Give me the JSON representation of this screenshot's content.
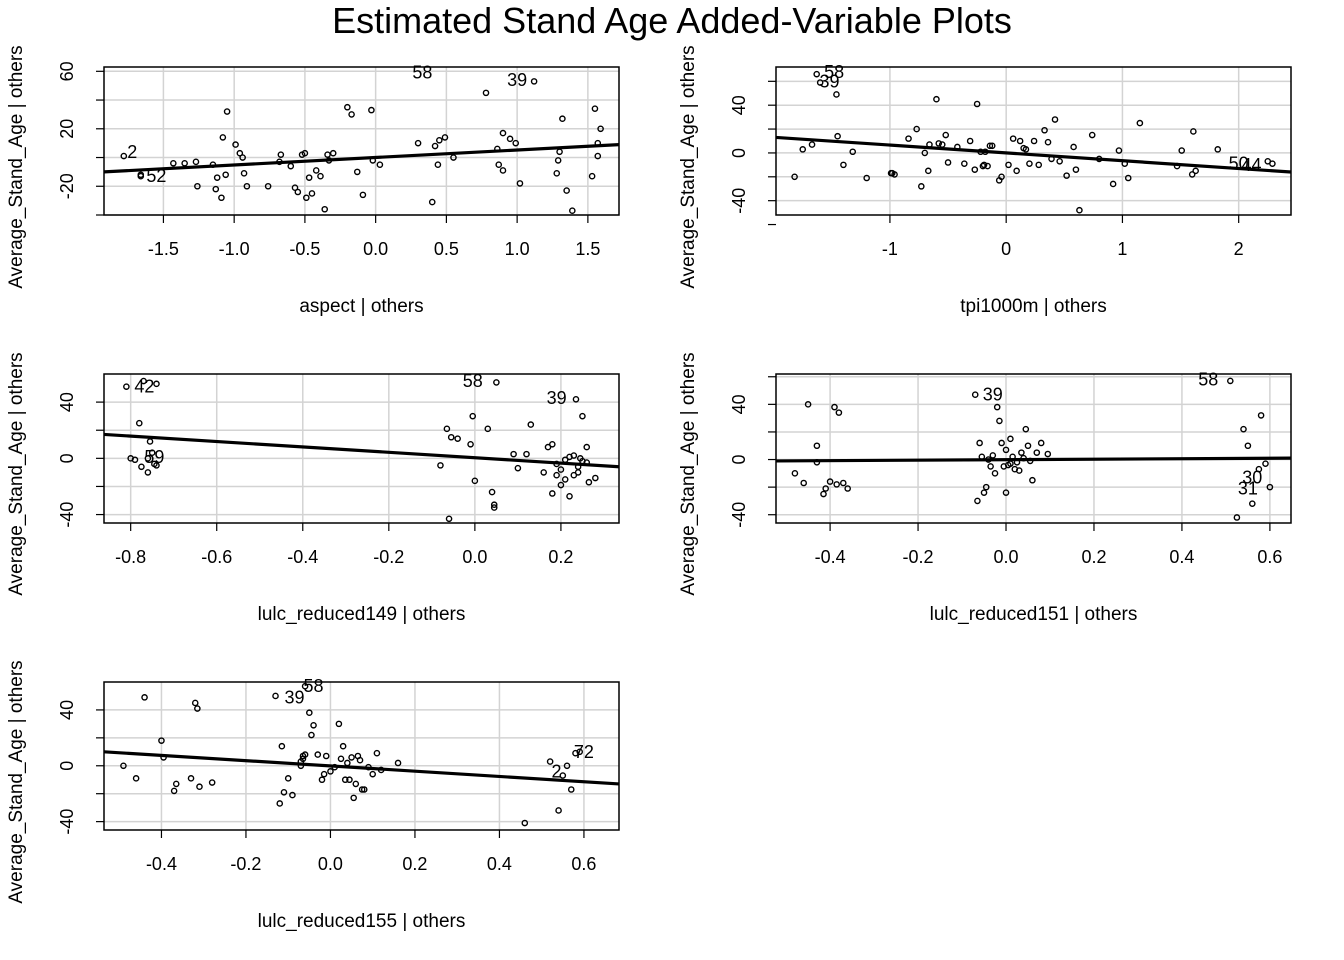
{
  "figure": {
    "title": "Estimated Stand Age Added-Variable Plots"
  },
  "chart_data": [
    {
      "type": "scatter",
      "xlabel": "aspect | others",
      "ylabel": "Average_Stand_Age  | others",
      "xlim": [
        -1.92,
        1.72
      ],
      "ylim": [
        -40,
        63
      ],
      "xticks": [
        -1.5,
        -1.0,
        -0.5,
        0.0,
        0.5,
        1.0,
        1.5
      ],
      "xtick_labels": [
        "-1.5",
        "-1.0",
        "-0.5",
        "0.0",
        "0.5",
        "1.0",
        "1.5"
      ],
      "yticks": [
        -40,
        -20,
        0,
        20,
        40,
        60
      ],
      "ytick_labels": [
        "",
        "-20",
        "",
        "20",
        "",
        "60"
      ],
      "grid": true,
      "fit_line": {
        "x0": -1.92,
        "y0": -10,
        "x1": 1.72,
        "y1": 9
      },
      "x": [
        -1.78,
        -1.66,
        -1.66,
        -1.43,
        -1.35,
        -1.27,
        -1.26,
        -1.15,
        -1.13,
        -1.12,
        -1.09,
        -1.08,
        -1.05,
        -1.06,
        -0.99,
        -0.96,
        -0.94,
        -0.93,
        -0.91,
        -0.76,
        -0.68,
        -0.67,
        -0.6,
        -0.57,
        -0.55,
        -0.52,
        -0.5,
        -0.49,
        -0.47,
        -0.45,
        -0.42,
        -0.39,
        -0.36,
        -0.34,
        -0.33,
        -0.3,
        -0.2,
        -0.17,
        -0.13,
        -0.09,
        -0.03,
        -0.02,
        0.03,
        0.3,
        0.4,
        0.42,
        0.44,
        0.45,
        0.49,
        0.55,
        0.78,
        0.86,
        0.87,
        0.9,
        0.9,
        0.95,
        0.99,
        1.02,
        1.12,
        1.28,
        1.29,
        1.3,
        1.32,
        1.35,
        1.39,
        1.53,
        1.55,
        1.57,
        1.57,
        1.59
      ],
      "y": [
        1,
        -12,
        -13,
        -4,
        -4,
        -3,
        -20,
        -5,
        -22,
        -14,
        -28,
        14,
        32,
        -12,
        9,
        3,
        0,
        -11,
        -20,
        -20,
        -3,
        2,
        -6,
        -21,
        -24,
        2,
        3,
        -28,
        -14,
        -25,
        -9,
        -13,
        -36,
        2,
        -2,
        3,
        35,
        30,
        -10,
        -26,
        33,
        -2,
        -5,
        10,
        -31,
        8,
        -5,
        12,
        14,
        0,
        45,
        6,
        -5,
        -9,
        17,
        13,
        10,
        -18,
        53,
        -11,
        -2,
        4,
        27,
        -23,
        -37,
        -13,
        34,
        1,
        10,
        20
      ],
      "point_labels": [
        {
          "text": "58",
          "x": 0.33,
          "y": 59
        },
        {
          "text": "39",
          "x": 1.0,
          "y": 54
        },
        {
          "text": "2",
          "x": -1.72,
          "y": 4
        },
        {
          "text": "52",
          "x": -1.55,
          "y": -13
        }
      ]
    },
    {
      "type": "scatter",
      "xlabel": "tpi1000m | others",
      "ylabel": "Average_Stand_Age  | others",
      "xlim": [
        -1.98,
        2.45
      ],
      "ylim": [
        -52,
        72
      ],
      "xticks": [
        -1,
        0,
        1,
        2
      ],
      "xtick_labels": [
        "-1",
        "0",
        "1",
        "2"
      ],
      "yticks": [
        -60,
        -40,
        -20,
        0,
        20,
        40,
        60
      ],
      "ytick_labels": [
        "",
        "-40",
        "",
        "0",
        "",
        "40",
        ""
      ],
      "grid": true,
      "fit_line": {
        "x0": -1.98,
        "y0": 13,
        "x1": 2.45,
        "y1": -16
      },
      "x": [
        -1.82,
        -1.75,
        -1.67,
        -1.63,
        -1.6,
        -1.46,
        -1.45,
        -1.4,
        -1.32,
        -1.2,
        -0.99,
        -0.98,
        -0.96,
        -0.84,
        -0.77,
        -0.73,
        -0.7,
        -0.67,
        -0.66,
        -0.6,
        -0.58,
        -0.55,
        -0.52,
        -0.5,
        -0.42,
        -0.36,
        -0.31,
        -0.27,
        -0.25,
        -0.22,
        -0.2,
        -0.19,
        -0.18,
        -0.16,
        -0.14,
        -0.12,
        -0.06,
        -0.04,
        0.02,
        0.06,
        0.09,
        0.12,
        0.15,
        0.17,
        0.2,
        0.24,
        0.28,
        0.33,
        0.36,
        0.39,
        0.42,
        0.46,
        0.52,
        0.58,
        0.6,
        0.63,
        0.74,
        0.8,
        0.92,
        0.97,
        1.02,
        1.05,
        1.15,
        1.47,
        1.51,
        1.6,
        1.61,
        1.63,
        1.82,
        2.25,
        2.29
      ],
      "y": [
        -20,
        3,
        7,
        66,
        59,
        49,
        14,
        -10,
        1,
        -21,
        -17,
        -17,
        -18,
        12,
        20,
        -28,
        0,
        -15,
        7,
        45,
        8,
        7,
        15,
        -8,
        5,
        -9,
        10,
        -14,
        41,
        1,
        -11,
        -10,
        1,
        -11,
        6,
        6,
        -23,
        -20,
        -10,
        12,
        -15,
        10,
        4,
        3,
        -9,
        10,
        -10,
        19,
        9,
        -5,
        28,
        -7,
        -19,
        5,
        -14,
        -48,
        15,
        -5,
        -26,
        2,
        -9,
        -21,
        25,
        -11,
        2,
        -18,
        18,
        -15,
        3,
        -7,
        -9
      ],
      "point_labels": [
        {
          "text": "58",
          "x": -1.48,
          "y": 68
        },
        {
          "text": "39",
          "x": -1.52,
          "y": 60
        },
        {
          "text": "50",
          "x": 2.0,
          "y": -9
        },
        {
          "text": "44",
          "x": 2.11,
          "y": -10
        }
      ]
    },
    {
      "type": "scatter",
      "xlabel": "lulc_reduced149 | others",
      "ylabel": "Average_Stand_Age  | others",
      "xlim": [
        -0.862,
        0.335
      ],
      "ylim": [
        -46,
        60
      ],
      "xticks": [
        -0.8,
        -0.6,
        -0.4,
        -0.2,
        0.0,
        0.2
      ],
      "xtick_labels": [
        "-0.8",
        "-0.6",
        "-0.4",
        "-0.2",
        "0.0",
        "0.2"
      ],
      "yticks": [
        -40,
        -20,
        0,
        20,
        40
      ],
      "ytick_labels": [
        "-40",
        "",
        "0",
        "",
        "40"
      ],
      "grid": true,
      "fit_line": {
        "x0": -0.862,
        "y0": 17,
        "x1": 0.335,
        "y1": -6
      },
      "x": [
        -0.81,
        -0.8,
        -0.79,
        -0.78,
        -0.775,
        -0.77,
        -0.76,
        -0.76,
        -0.755,
        -0.75,
        -0.745,
        -0.74,
        -0.74,
        -0.08,
        -0.065,
        -0.06,
        -0.055,
        -0.04,
        -0.01,
        -0.005,
        0.0,
        0.03,
        0.04,
        0.045,
        0.045,
        0.05,
        0.09,
        0.1,
        0.12,
        0.13,
        0.16,
        0.17,
        0.18,
        0.18,
        0.19,
        0.19,
        0.2,
        0.2,
        0.21,
        0.21,
        0.22,
        0.22,
        0.23,
        0.23,
        0.235,
        0.24,
        0.24,
        0.245,
        0.25,
        0.25,
        0.26,
        0.26,
        0.265,
        0.28
      ],
      "y": [
        51,
        0,
        -1,
        25,
        -6,
        55,
        -10,
        0,
        12,
        4,
        -4,
        53,
        -5,
        -5,
        21,
        -43,
        15,
        14,
        10,
        30,
        -16,
        21,
        -24,
        -35,
        -33,
        54,
        3,
        -7,
        3,
        24,
        -10,
        8,
        10,
        -25,
        -4,
        -12,
        -19,
        -8,
        -15,
        -1,
        -27,
        1,
        -12,
        2,
        42,
        -6,
        -10,
        0,
        -2,
        30,
        8,
        -3,
        -17,
        -14
      ],
      "point_labels": [
        {
          "text": "42",
          "x": -0.768,
          "y": 51
        },
        {
          "text": "58",
          "x": -0.005,
          "y": 55
        },
        {
          "text": "39",
          "x": 0.19,
          "y": 43
        },
        {
          "text": "59",
          "x": -0.745,
          "y": 1
        }
      ]
    },
    {
      "type": "scatter",
      "xlabel": "lulc_reduced151 | others",
      "ylabel": "Average_Stand_Age  | others",
      "xlim": [
        -0.523,
        0.648
      ],
      "ylim": [
        -46,
        62
      ],
      "xticks": [
        -0.4,
        -0.2,
        0.0,
        0.2,
        0.4,
        0.6
      ],
      "xtick_labels": [
        "-0.4",
        "-0.2",
        "0.0",
        "0.2",
        "0.4",
        "0.6"
      ],
      "yticks": [
        -40,
        -20,
        0,
        20,
        40,
        60
      ],
      "ytick_labels": [
        "-40",
        "",
        "0",
        "",
        "40",
        ""
      ],
      "grid": true,
      "fit_line": {
        "x0": -0.523,
        "y0": -1,
        "x1": 0.648,
        "y1": 1
      },
      "x": [
        -0.48,
        -0.46,
        -0.45,
        -0.43,
        -0.43,
        -0.415,
        -0.41,
        -0.4,
        -0.39,
        -0.385,
        -0.38,
        -0.37,
        -0.36,
        -0.07,
        -0.065,
        -0.06,
        -0.055,
        -0.05,
        -0.045,
        -0.04,
        -0.035,
        -0.03,
        -0.025,
        -0.02,
        -0.015,
        -0.01,
        -0.005,
        0.0,
        0.0,
        0.005,
        0.01,
        0.01,
        0.015,
        0.02,
        0.025,
        0.03,
        0.035,
        0.04,
        0.045,
        0.05,
        0.055,
        0.06,
        0.07,
        0.08,
        0.095,
        0.51,
        0.525,
        0.54,
        0.55,
        0.56,
        0.575,
        0.58,
        0.59,
        0.6
      ],
      "y": [
        -10,
        -17,
        40,
        10,
        -2,
        -25,
        -21,
        -16,
        38,
        -18,
        34,
        -17,
        -21,
        47,
        -30,
        12,
        2,
        -24,
        -20,
        0,
        -5,
        3,
        -10,
        38,
        28,
        12,
        -5,
        -24,
        7,
        -4,
        15,
        -3,
        2,
        -7,
        -2,
        -8,
        5,
        1,
        22,
        10,
        -1,
        -15,
        5,
        12,
        4,
        57,
        -42,
        22,
        10,
        -32,
        -7,
        32,
        -3,
        -20
      ],
      "point_labels": [
        {
          "text": "58",
          "x": 0.46,
          "y": 58
        },
        {
          "text": "39",
          "x": -0.03,
          "y": 47
        },
        {
          "text": "30",
          "x": 0.56,
          "y": -13
        },
        {
          "text": "31",
          "x": 0.55,
          "y": -21
        }
      ]
    },
    {
      "type": "scatter",
      "xlabel": "lulc_reduced155 | others",
      "ylabel": "Average_Stand_Age  | others",
      "xlim": [
        -0.536,
        0.683
      ],
      "ylim": [
        -46,
        60
      ],
      "xticks": [
        -0.4,
        -0.2,
        0.0,
        0.2,
        0.4,
        0.6
      ],
      "xtick_labels": [
        "-0.4",
        "-0.2",
        "0.0",
        "0.2",
        "0.4",
        "0.6"
      ],
      "yticks": [
        -40,
        -20,
        0,
        20,
        40
      ],
      "ytick_labels": [
        "-40",
        "",
        "0",
        "",
        "40"
      ],
      "grid": true,
      "fit_line": {
        "x0": -0.536,
        "y0": 10,
        "x1": 0.683,
        "y1": -13
      },
      "x": [
        -0.49,
        -0.46,
        -0.44,
        -0.4,
        -0.395,
        -0.37,
        -0.365,
        -0.33,
        -0.32,
        -0.315,
        -0.31,
        -0.28,
        -0.13,
        -0.12,
        -0.115,
        -0.11,
        -0.1,
        -0.09,
        -0.07,
        -0.07,
        -0.065,
        -0.065,
        -0.06,
        -0.06,
        -0.05,
        -0.045,
        -0.04,
        -0.03,
        -0.02,
        -0.015,
        -0.01,
        0.0,
        0.01,
        0.02,
        0.025,
        0.03,
        0.035,
        0.04,
        0.045,
        0.05,
        0.055,
        0.06,
        0.065,
        0.07,
        0.075,
        0.08,
        0.09,
        0.1,
        0.11,
        0.12,
        0.16,
        0.46,
        0.52,
        0.54,
        0.55,
        0.56,
        0.57,
        0.58,
        0.59
      ],
      "y": [
        0,
        -9,
        49,
        18,
        6,
        -18,
        -13,
        -9,
        45,
        41,
        -15,
        -12,
        50,
        -27,
        14,
        -19,
        -9,
        -21,
        0,
        3,
        5,
        7,
        57,
        8,
        38,
        22,
        29,
        8,
        -10,
        -6,
        7,
        -4,
        -1,
        30,
        5,
        14,
        -10,
        2,
        -10,
        6,
        -23,
        -13,
        7,
        4,
        -17,
        -17,
        -1,
        -6,
        9,
        -3,
        2,
        -41,
        3,
        -32,
        -7,
        0,
        -17,
        9,
        10
      ],
      "point_labels": [
        {
          "text": "58",
          "x": -0.04,
          "y": 57
        },
        {
          "text": "39",
          "x": -0.085,
          "y": 49
        },
        {
          "text": "72",
          "x": 0.6,
          "y": 10
        },
        {
          "text": "2",
          "x": 0.535,
          "y": -4
        }
      ]
    }
  ]
}
